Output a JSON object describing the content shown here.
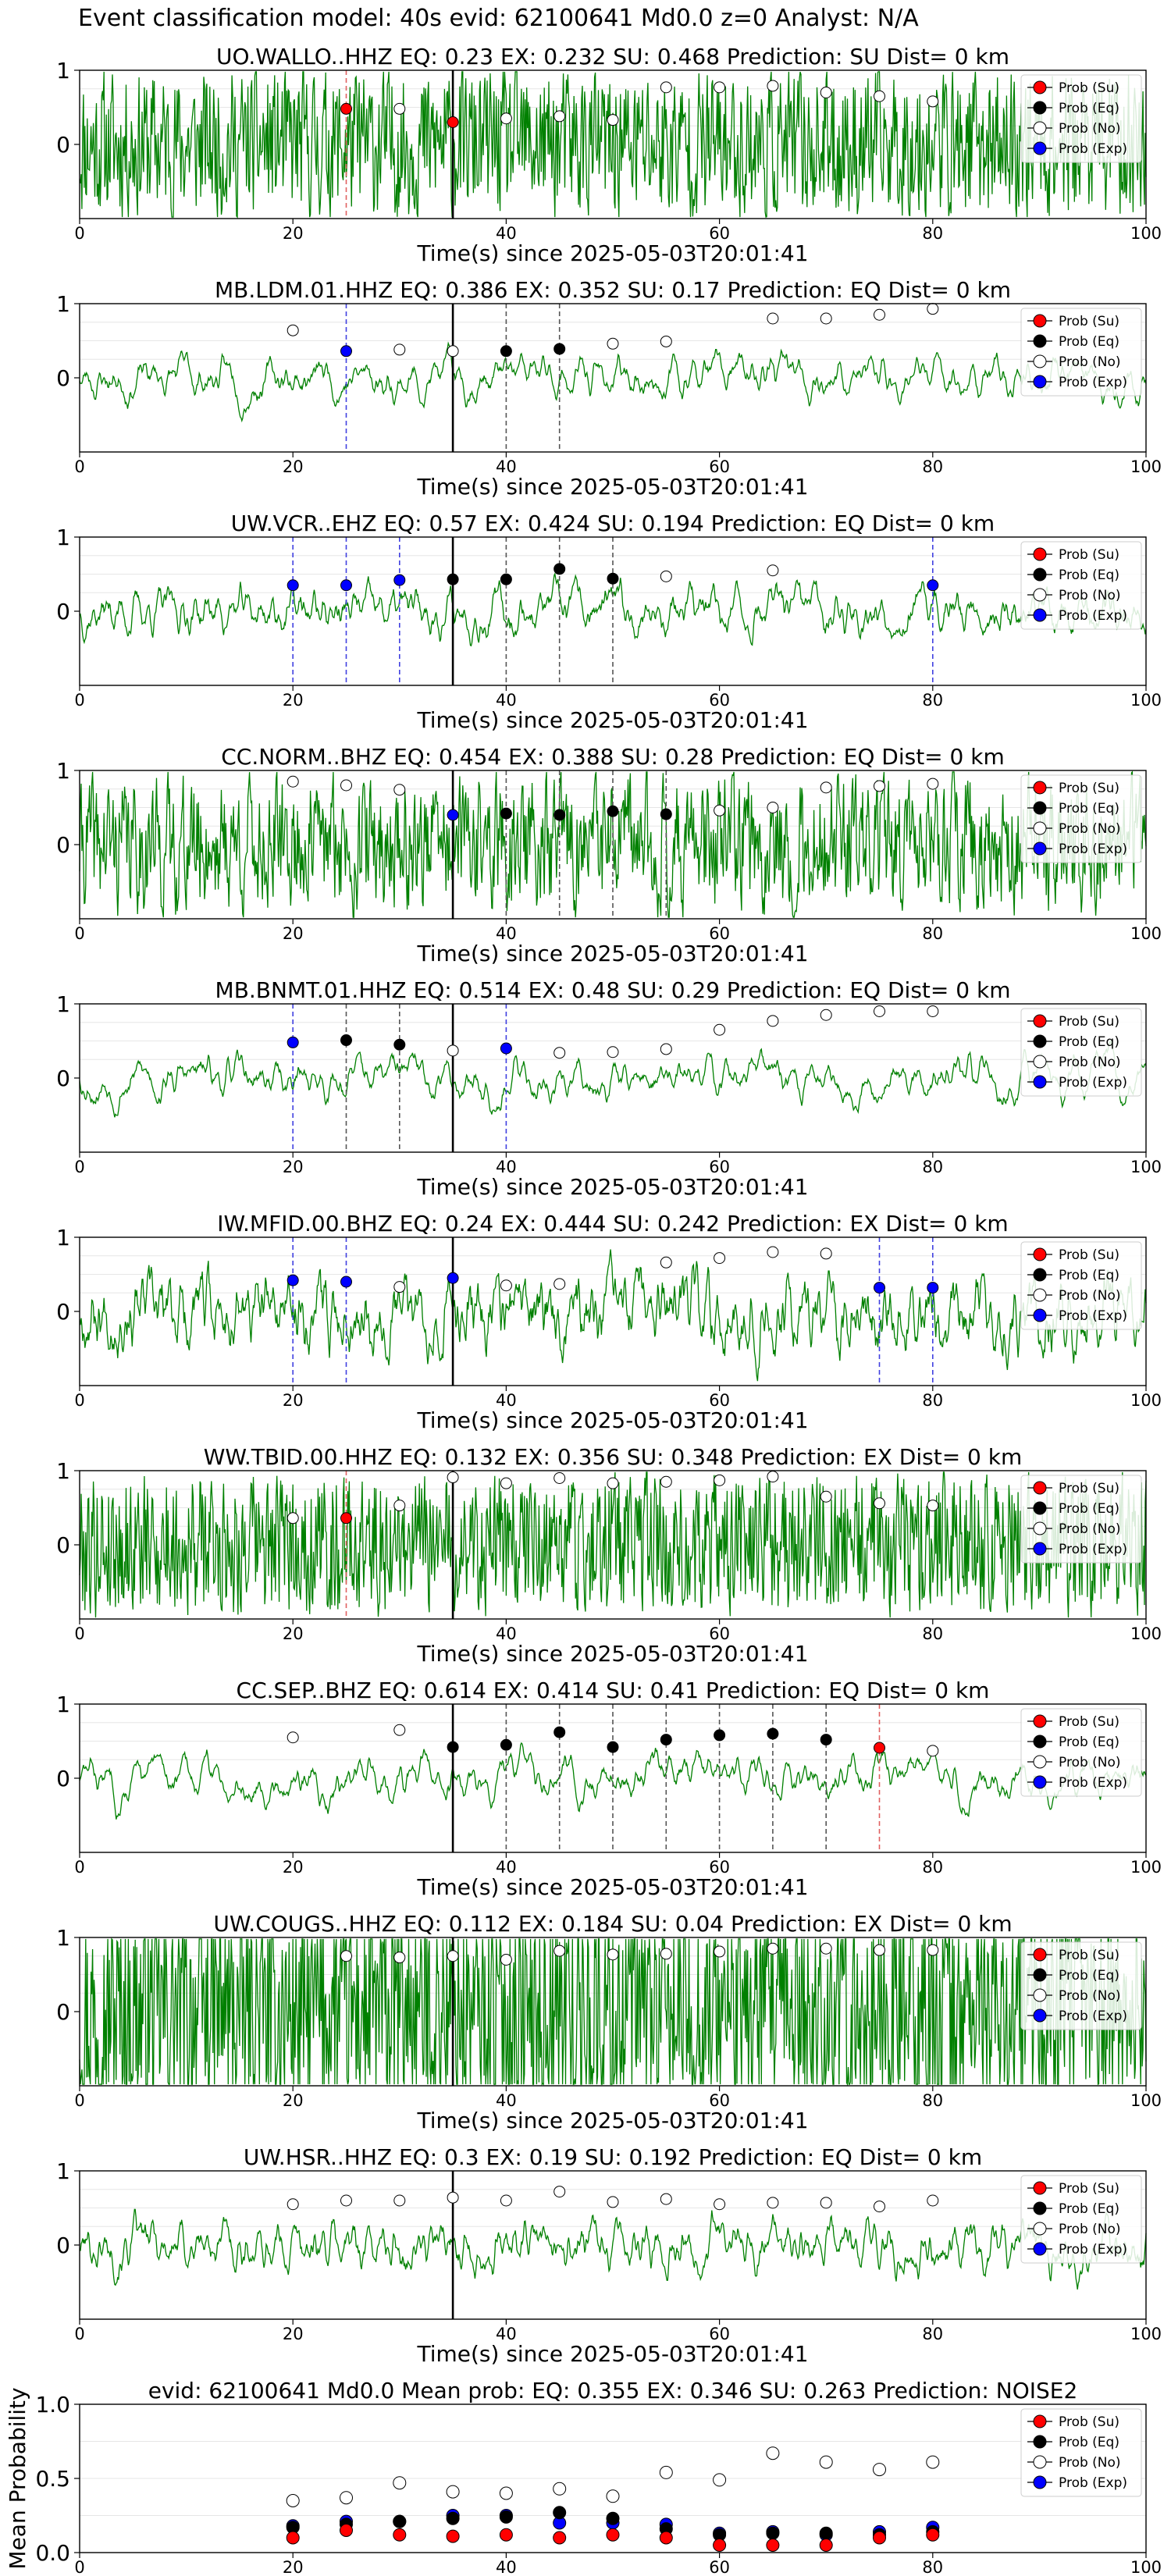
{
  "figure_title": "Event classification model: 40s evid: 62100641 Md0.0 z=0 Analyst: N/A",
  "legend_labels": [
    "Prob (Su)",
    "Prob (Eq)",
    "Prob (No)",
    "Prob (Exp)"
  ],
  "colors": {
    "trace": "#008000",
    "su": "#ff0000",
    "eq": "#000000",
    "no": "#ffffff",
    "exp": "#0000ff",
    "line_su": "#e06060",
    "line_eq": "#555555",
    "line_exp": "#4040e0"
  },
  "chart_data": [
    {
      "type": "line",
      "title": "UO.WALLO..HHZ   EQ: 0.23  EX: 0.232  SU: 0.468   Prediction: SU    Dist= 0 km",
      "xlabel": "Time(s) since 2025-05-03T20:01:41",
      "xlim": [
        0,
        100
      ],
      "xticks": [
        0,
        20,
        40,
        60,
        80,
        100
      ],
      "yticks": [
        0,
        1
      ],
      "markers": [
        {
          "x": 25,
          "y": 0.48,
          "cls": "su"
        },
        {
          "x": 30,
          "y": 0.48,
          "cls": "no"
        },
        {
          "x": 35,
          "y": 0.3,
          "cls": "su"
        },
        {
          "x": 40,
          "y": 0.35,
          "cls": "no"
        },
        {
          "x": 45,
          "y": 0.38,
          "cls": "no"
        },
        {
          "x": 50,
          "y": 0.33,
          "cls": "no"
        },
        {
          "x": 55,
          "y": 0.77,
          "cls": "no"
        },
        {
          "x": 60,
          "y": 0.77,
          "cls": "no"
        },
        {
          "x": 65,
          "y": 0.79,
          "cls": "no"
        },
        {
          "x": 70,
          "y": 0.7,
          "cls": "no"
        },
        {
          "x": 75,
          "y": 0.65,
          "cls": "no"
        },
        {
          "x": 80,
          "y": 0.58,
          "cls": "no"
        }
      ],
      "vlines": [
        {
          "x": 25,
          "cls": "su"
        },
        {
          "x": 35,
          "cls": "su"
        }
      ]
    },
    {
      "type": "line",
      "title": "MB.LDM.01.HHZ   EQ: 0.386  EX: 0.352  SU: 0.17   Prediction: EQ    Dist= 0 km",
      "xlabel": "Time(s) since 2025-05-03T20:01:41",
      "xlim": [
        0,
        100
      ],
      "xticks": [
        0,
        20,
        40,
        60,
        80,
        100
      ],
      "yticks": [
        0,
        1
      ],
      "markers": [
        {
          "x": 20,
          "y": 0.64,
          "cls": "no"
        },
        {
          "x": 25,
          "y": 0.36,
          "cls": "exp"
        },
        {
          "x": 30,
          "y": 0.38,
          "cls": "no"
        },
        {
          "x": 35,
          "y": 0.36,
          "cls": "no"
        },
        {
          "x": 40,
          "y": 0.36,
          "cls": "eq"
        },
        {
          "x": 45,
          "y": 0.39,
          "cls": "eq"
        },
        {
          "x": 50,
          "y": 0.46,
          "cls": "no"
        },
        {
          "x": 55,
          "y": 0.49,
          "cls": "no"
        },
        {
          "x": 65,
          "y": 0.8,
          "cls": "no"
        },
        {
          "x": 70,
          "y": 0.8,
          "cls": "no"
        },
        {
          "x": 75,
          "y": 0.85,
          "cls": "no"
        },
        {
          "x": 80,
          "y": 0.93,
          "cls": "no"
        }
      ],
      "vlines": [
        {
          "x": 25,
          "cls": "exp"
        },
        {
          "x": 40,
          "cls": "eq"
        },
        {
          "x": 45,
          "cls": "eq"
        }
      ]
    },
    {
      "type": "line",
      "title": "UW.VCR..EHZ   EQ: 0.57  EX: 0.424  SU: 0.194   Prediction: EQ    Dist= 0 km",
      "xlabel": "Time(s) since 2025-05-03T20:01:41",
      "xlim": [
        0,
        100
      ],
      "xticks": [
        0,
        20,
        40,
        60,
        80,
        100
      ],
      "yticks": [
        0,
        1
      ],
      "markers": [
        {
          "x": 20,
          "y": 0.35,
          "cls": "exp"
        },
        {
          "x": 25,
          "y": 0.35,
          "cls": "exp"
        },
        {
          "x": 30,
          "y": 0.42,
          "cls": "exp"
        },
        {
          "x": 35,
          "y": 0.43,
          "cls": "eq"
        },
        {
          "x": 40,
          "y": 0.43,
          "cls": "eq"
        },
        {
          "x": 45,
          "y": 0.57,
          "cls": "eq"
        },
        {
          "x": 50,
          "y": 0.44,
          "cls": "eq"
        },
        {
          "x": 55,
          "y": 0.47,
          "cls": "no"
        },
        {
          "x": 65,
          "y": 0.55,
          "cls": "no"
        },
        {
          "x": 80,
          "y": 0.35,
          "cls": "exp"
        }
      ],
      "vlines": [
        {
          "x": 20,
          "cls": "exp"
        },
        {
          "x": 25,
          "cls": "exp"
        },
        {
          "x": 30,
          "cls": "exp"
        },
        {
          "x": 40,
          "cls": "eq"
        },
        {
          "x": 45,
          "cls": "eq"
        },
        {
          "x": 50,
          "cls": "eq"
        },
        {
          "x": 80,
          "cls": "exp"
        }
      ]
    },
    {
      "type": "line",
      "title": "CC.NORM..BHZ   EQ: 0.454  EX: 0.388  SU: 0.28   Prediction: EQ    Dist= 0 km",
      "xlabel": "Time(s) since 2025-05-03T20:01:41",
      "xlim": [
        0,
        100
      ],
      "xticks": [
        0,
        20,
        40,
        60,
        80,
        100
      ],
      "yticks": [
        0,
        1
      ],
      "markers": [
        {
          "x": 20,
          "y": 0.85,
          "cls": "no"
        },
        {
          "x": 25,
          "y": 0.8,
          "cls": "no"
        },
        {
          "x": 30,
          "y": 0.74,
          "cls": "no"
        },
        {
          "x": 35,
          "y": 0.4,
          "cls": "exp"
        },
        {
          "x": 40,
          "y": 0.42,
          "cls": "eq"
        },
        {
          "x": 45,
          "y": 0.4,
          "cls": "eq"
        },
        {
          "x": 50,
          "y": 0.45,
          "cls": "eq"
        },
        {
          "x": 55,
          "y": 0.41,
          "cls": "eq"
        },
        {
          "x": 60,
          "y": 0.46,
          "cls": "no"
        },
        {
          "x": 65,
          "y": 0.5,
          "cls": "no"
        },
        {
          "x": 70,
          "y": 0.77,
          "cls": "no"
        },
        {
          "x": 75,
          "y": 0.79,
          "cls": "no"
        },
        {
          "x": 80,
          "y": 0.82,
          "cls": "no"
        }
      ],
      "vlines": [
        {
          "x": 40,
          "cls": "eq"
        },
        {
          "x": 45,
          "cls": "eq"
        },
        {
          "x": 50,
          "cls": "eq"
        },
        {
          "x": 55,
          "cls": "eq"
        }
      ]
    },
    {
      "type": "line",
      "title": "MB.BNMT.01.HHZ   EQ: 0.514  EX: 0.48  SU: 0.29   Prediction: EQ    Dist= 0 km",
      "xlabel": "Time(s) since 2025-05-03T20:01:41",
      "xlim": [
        0,
        100
      ],
      "xticks": [
        0,
        20,
        40,
        60,
        80,
        100
      ],
      "yticks": [
        0,
        1
      ],
      "markers": [
        {
          "x": 20,
          "y": 0.48,
          "cls": "exp"
        },
        {
          "x": 25,
          "y": 0.51,
          "cls": "eq"
        },
        {
          "x": 30,
          "y": 0.45,
          "cls": "eq"
        },
        {
          "x": 35,
          "y": 0.37,
          "cls": "no"
        },
        {
          "x": 40,
          "y": 0.4,
          "cls": "exp"
        },
        {
          "x": 45,
          "y": 0.34,
          "cls": "no"
        },
        {
          "x": 50,
          "y": 0.35,
          "cls": "no"
        },
        {
          "x": 55,
          "y": 0.39,
          "cls": "no"
        },
        {
          "x": 60,
          "y": 0.65,
          "cls": "no"
        },
        {
          "x": 65,
          "y": 0.77,
          "cls": "no"
        },
        {
          "x": 70,
          "y": 0.85,
          "cls": "no"
        },
        {
          "x": 75,
          "y": 0.9,
          "cls": "no"
        },
        {
          "x": 80,
          "y": 0.9,
          "cls": "no"
        }
      ],
      "vlines": [
        {
          "x": 20,
          "cls": "exp"
        },
        {
          "x": 25,
          "cls": "eq"
        },
        {
          "x": 30,
          "cls": "eq"
        },
        {
          "x": 40,
          "cls": "exp"
        }
      ]
    },
    {
      "type": "line",
      "title": "IW.MFID.00.BHZ   EQ: 0.24  EX: 0.444  SU: 0.242   Prediction: EX    Dist= 0 km",
      "xlabel": "Time(s) since 2025-05-03T20:01:41",
      "xlim": [
        0,
        100
      ],
      "xticks": [
        0,
        20,
        40,
        60,
        80,
        100
      ],
      "yticks": [
        0,
        1
      ],
      "markers": [
        {
          "x": 20,
          "y": 0.42,
          "cls": "exp"
        },
        {
          "x": 25,
          "y": 0.4,
          "cls": "exp"
        },
        {
          "x": 30,
          "y": 0.33,
          "cls": "no"
        },
        {
          "x": 35,
          "y": 0.45,
          "cls": "exp"
        },
        {
          "x": 40,
          "y": 0.35,
          "cls": "no"
        },
        {
          "x": 45,
          "y": 0.37,
          "cls": "no"
        },
        {
          "x": 55,
          "y": 0.66,
          "cls": "no"
        },
        {
          "x": 60,
          "y": 0.72,
          "cls": "no"
        },
        {
          "x": 65,
          "y": 0.8,
          "cls": "no"
        },
        {
          "x": 70,
          "y": 0.78,
          "cls": "no"
        },
        {
          "x": 75,
          "y": 0.32,
          "cls": "exp"
        },
        {
          "x": 80,
          "y": 0.32,
          "cls": "exp"
        }
      ],
      "vlines": [
        {
          "x": 20,
          "cls": "exp"
        },
        {
          "x": 25,
          "cls": "exp"
        },
        {
          "x": 75,
          "cls": "exp"
        },
        {
          "x": 80,
          "cls": "exp"
        }
      ]
    },
    {
      "type": "line",
      "title": "WW.TBID.00.HHZ   EQ: 0.132  EX: 0.356  SU: 0.348   Prediction: EX    Dist= 0 km",
      "xlabel": "Time(s) since 2025-05-03T20:01:41",
      "xlim": [
        0,
        100
      ],
      "xticks": [
        0,
        20,
        40,
        60,
        80,
        100
      ],
      "yticks": [
        0,
        1
      ],
      "markers": [
        {
          "x": 20,
          "y": 0.36,
          "cls": "no"
        },
        {
          "x": 25,
          "y": 0.36,
          "cls": "su"
        },
        {
          "x": 30,
          "y": 0.53,
          "cls": "no"
        },
        {
          "x": 35,
          "y": 0.91,
          "cls": "no"
        },
        {
          "x": 40,
          "y": 0.83,
          "cls": "no"
        },
        {
          "x": 45,
          "y": 0.9,
          "cls": "no"
        },
        {
          "x": 50,
          "y": 0.83,
          "cls": "no"
        },
        {
          "x": 55,
          "y": 0.85,
          "cls": "no"
        },
        {
          "x": 60,
          "y": 0.87,
          "cls": "no"
        },
        {
          "x": 65,
          "y": 0.92,
          "cls": "no"
        },
        {
          "x": 70,
          "y": 0.65,
          "cls": "no"
        },
        {
          "x": 75,
          "y": 0.56,
          "cls": "no"
        },
        {
          "x": 80,
          "y": 0.53,
          "cls": "no"
        }
      ],
      "vlines": [
        {
          "x": 25,
          "cls": "su"
        }
      ]
    },
    {
      "type": "line",
      "title": "CC.SEP..BHZ   EQ: 0.614  EX: 0.414  SU: 0.41   Prediction: EQ    Dist= 0 km",
      "xlabel": "Time(s) since 2025-05-03T20:01:41",
      "xlim": [
        0,
        100
      ],
      "xticks": [
        0,
        20,
        40,
        60,
        80,
        100
      ],
      "yticks": [
        0,
        1
      ],
      "markers": [
        {
          "x": 20,
          "y": 0.55,
          "cls": "no"
        },
        {
          "x": 30,
          "y": 0.65,
          "cls": "no"
        },
        {
          "x": 35,
          "y": 0.42,
          "cls": "eq"
        },
        {
          "x": 40,
          "y": 0.45,
          "cls": "eq"
        },
        {
          "x": 45,
          "y": 0.62,
          "cls": "eq"
        },
        {
          "x": 50,
          "y": 0.42,
          "cls": "eq"
        },
        {
          "x": 55,
          "y": 0.52,
          "cls": "eq"
        },
        {
          "x": 60,
          "y": 0.58,
          "cls": "eq"
        },
        {
          "x": 65,
          "y": 0.6,
          "cls": "eq"
        },
        {
          "x": 70,
          "y": 0.52,
          "cls": "eq"
        },
        {
          "x": 75,
          "y": 0.41,
          "cls": "su"
        },
        {
          "x": 80,
          "y": 0.37,
          "cls": "no"
        }
      ],
      "vlines": [
        {
          "x": 40,
          "cls": "eq"
        },
        {
          "x": 45,
          "cls": "eq"
        },
        {
          "x": 50,
          "cls": "eq"
        },
        {
          "x": 55,
          "cls": "eq"
        },
        {
          "x": 60,
          "cls": "eq"
        },
        {
          "x": 65,
          "cls": "eq"
        },
        {
          "x": 70,
          "cls": "eq"
        },
        {
          "x": 75,
          "cls": "su"
        }
      ]
    },
    {
      "type": "line",
      "title": "UW.COUGS..HHZ   EQ: 0.112  EX: 0.184  SU: 0.04   Prediction: EX    Dist= 0 km",
      "xlabel": "Time(s) since 2025-05-03T20:01:41",
      "xlim": [
        0,
        100
      ],
      "xticks": [
        0,
        20,
        40,
        60,
        80,
        100
      ],
      "yticks": [
        0,
        1
      ],
      "markers": [
        {
          "x": 25,
          "y": 0.75,
          "cls": "no"
        },
        {
          "x": 30,
          "y": 0.73,
          "cls": "no"
        },
        {
          "x": 35,
          "y": 0.75,
          "cls": "no"
        },
        {
          "x": 40,
          "y": 0.7,
          "cls": "no"
        },
        {
          "x": 45,
          "y": 0.82,
          "cls": "no"
        },
        {
          "x": 50,
          "y": 0.77,
          "cls": "no"
        },
        {
          "x": 55,
          "y": 0.78,
          "cls": "no"
        },
        {
          "x": 60,
          "y": 0.81,
          "cls": "no"
        },
        {
          "x": 65,
          "y": 0.85,
          "cls": "no"
        },
        {
          "x": 70,
          "y": 0.85,
          "cls": "no"
        },
        {
          "x": 75,
          "y": 0.83,
          "cls": "no"
        },
        {
          "x": 80,
          "y": 0.83,
          "cls": "no"
        }
      ],
      "vlines": []
    },
    {
      "type": "line",
      "title": "UW.HSR..HHZ   EQ: 0.3  EX: 0.19  SU: 0.192   Prediction: EQ    Dist= 0 km",
      "xlabel": "Time(s) since 2025-05-03T20:01:41",
      "xlim": [
        0,
        100
      ],
      "xticks": [
        0,
        20,
        40,
        60,
        80,
        100
      ],
      "yticks": [
        0,
        1
      ],
      "markers": [
        {
          "x": 20,
          "y": 0.55,
          "cls": "no"
        },
        {
          "x": 25,
          "y": 0.6,
          "cls": "no"
        },
        {
          "x": 30,
          "y": 0.6,
          "cls": "no"
        },
        {
          "x": 35,
          "y": 0.64,
          "cls": "no"
        },
        {
          "x": 40,
          "y": 0.6,
          "cls": "no"
        },
        {
          "x": 45,
          "y": 0.72,
          "cls": "no"
        },
        {
          "x": 50,
          "y": 0.58,
          "cls": "no"
        },
        {
          "x": 55,
          "y": 0.62,
          "cls": "no"
        },
        {
          "x": 60,
          "y": 0.55,
          "cls": "no"
        },
        {
          "x": 65,
          "y": 0.57,
          "cls": "no"
        },
        {
          "x": 70,
          "y": 0.57,
          "cls": "no"
        },
        {
          "x": 75,
          "y": 0.52,
          "cls": "no"
        },
        {
          "x": 80,
          "y": 0.6,
          "cls": "no"
        }
      ],
      "vlines": []
    },
    {
      "type": "scatter",
      "title": "evid: 62100641  Md0.0   Mean prob:   EQ: 0.355  EX: 0.346  SU: 0.263   Prediction: NOISE2",
      "ylabel": "Mean Probability",
      "xlim": [
        0,
        100
      ],
      "ylim": [
        0,
        1
      ],
      "xticks": [
        0,
        20,
        40,
        60,
        80,
        100
      ],
      "yticks": [
        0.0,
        0.5,
        1.0
      ],
      "x": [
        20,
        25,
        30,
        35,
        40,
        45,
        50,
        55,
        60,
        65,
        70,
        75,
        80
      ],
      "series": [
        {
          "name": "Prob (No)",
          "cls": "no",
          "values": [
            0.35,
            0.37,
            0.47,
            0.41,
            0.4,
            0.43,
            0.38,
            0.54,
            0.49,
            0.67,
            0.61,
            0.56,
            0.61
          ]
        },
        {
          "name": "Prob (Exp)",
          "cls": "exp",
          "values": [
            0.18,
            0.21,
            0.21,
            0.25,
            0.25,
            0.2,
            0.2,
            0.19,
            0.13,
            0.14,
            0.12,
            0.14,
            0.17
          ]
        },
        {
          "name": "Prob (Eq)",
          "cls": "eq",
          "values": [
            0.17,
            0.19,
            0.21,
            0.23,
            0.24,
            0.27,
            0.23,
            0.16,
            0.12,
            0.13,
            0.13,
            0.12,
            0.14
          ]
        },
        {
          "name": "Prob (Su)",
          "cls": "su",
          "values": [
            0.1,
            0.15,
            0.12,
            0.11,
            0.12,
            0.1,
            0.12,
            0.1,
            0.05,
            0.05,
            0.05,
            0.1,
            0.12
          ]
        }
      ]
    }
  ]
}
